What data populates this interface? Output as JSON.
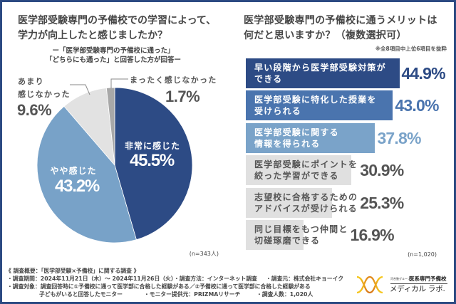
{
  "chart_data": [
    {
      "type": "pie",
      "title_lines": [
        "医学部受験専門の予備校での学習によって、",
        "学力が向上したと感じましたか？"
      ],
      "subtitle_lines": [
        "ー「医学部受験専門の予備校に通った」",
        "「どちらにも通った」と回答した方が回答ー"
      ],
      "categories": [
        "非常に感じた",
        "やや感じた",
        "あまり\n感じなかった",
        "まったく感じなかった"
      ],
      "values": [
        45.5,
        43.2,
        9.6,
        1.7
      ],
      "data_labels": [
        "45.5%",
        "43.2%",
        "9.6%",
        "1.7%"
      ],
      "unit": "%",
      "colors": [
        "#2d4b85",
        "#78a2c8",
        "#e2e2e2",
        "#a8a8a8"
      ],
      "sample_size": "(n=343人)"
    },
    {
      "type": "bar",
      "orientation": "horizontal",
      "title_lines": [
        "医学部受験専門の予備校に通うメリットは",
        "何だと思いますか？（複数選択可）"
      ],
      "note": "※全8項目中上位6項目を抜粋",
      "categories": [
        "早い段階から医学部受験対策が\nできる",
        "医学部受験に特化した授業を\n受けられる",
        "医学部受験に関する\n情報を得られる",
        "医学部受験にポイントを\n絞った学習ができる",
        "志望校に合格するための\nアドバイスが受けられる",
        "同じ目標をもつ仲間と\n切磋琢磨できる"
      ],
      "values": [
        44.9,
        43.0,
        37.8,
        30.9,
        25.3,
        16.9
      ],
      "data_labels": [
        "44.9%",
        "43.0%",
        "37.8%",
        "30.9%",
        "25.3%",
        "16.9%"
      ],
      "unit": "%",
      "colors": [
        "#2d4b85",
        "#4a74ae",
        "#7aa3c9",
        "#e0e0e0",
        "#e0e0e0",
        "#e0e0e0"
      ],
      "label_colors": [
        "#ffffff",
        "#ffffff",
        "#ffffff",
        "#555555",
        "#555555",
        "#555555"
      ],
      "value_colors": [
        "#2d4b85",
        "#4a74ae",
        "#7aa3c9",
        "#555555",
        "#555555",
        "#555555"
      ],
      "sample_size": "(n=1,020)"
    }
  ],
  "footer": {
    "heading": "《 調査概要：「医学部受験×予備校」に関する調査 》",
    "period": "・調査期間：2024年11月21日（木）～ 2024年11月26日（火）",
    "method": "・調査方法：インターネット調査",
    "source": "・調査元：株式会社キョーイク",
    "target_line1": "・調査対象：調査回答時に①予備校に通って医学部に合格した経験がある／②予備校に通って医学部に合格した経験がある",
    "target_line2": "子どもがいると回答したモニター",
    "provider": "・モニター提供元：PRIZMAリサーチ",
    "count": "・調査人数：1,020人"
  },
  "logo": {
    "group": "河合塾グループ",
    "tagline": "医系専門予備校",
    "name": "メディカル ラボ.",
    "icon": "helix-logo-icon"
  },
  "colors": {
    "frame": "#2c4a82",
    "accent_dark": "#2d4b85",
    "accent_mid": "#4a74ae",
    "accent_light": "#7aa3c9"
  }
}
